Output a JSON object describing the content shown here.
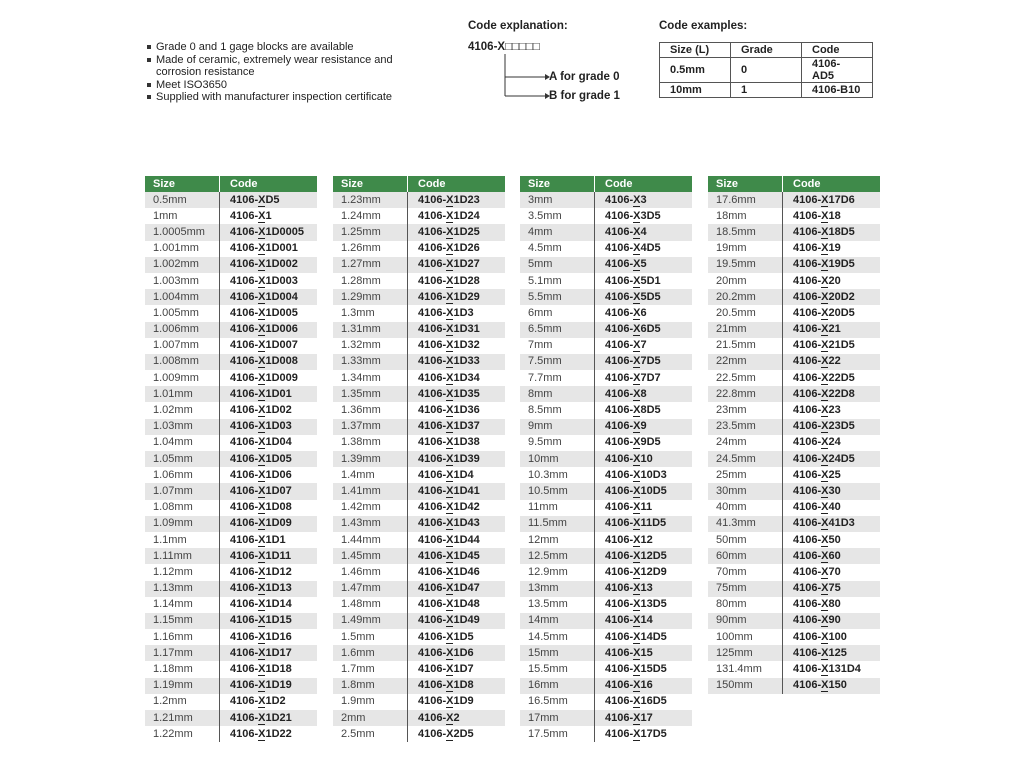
{
  "features": [
    "Grade 0 and 1 gage blocks are available",
    "Made of ceramic, extremely wear resistance and corrosion resistance",
    "Meet ISO3650",
    "Supplied with manufacturer inspection certificate"
  ],
  "explanation": {
    "title": "Code explanation:",
    "code_prefix": "4106-X",
    "code_boxes": "□□□□□",
    "grade_a": "A for grade 0",
    "grade_b": "B for grade 1"
  },
  "examples": {
    "title": "Code examples:",
    "headers": [
      "Size (L)",
      "Grade",
      "Code"
    ],
    "rows": [
      [
        "0.5mm",
        "0",
        "4106-AD5"
      ],
      [
        "10mm",
        "1",
        "4106-B10"
      ]
    ]
  },
  "table_headers": {
    "size": "Size",
    "code": "Code"
  },
  "tables": [
    [
      [
        "0.5mm",
        "4106-XD5"
      ],
      [
        "1mm",
        "4106-X1"
      ],
      [
        "1.0005mm",
        "4106-X1D0005"
      ],
      [
        "1.001mm",
        "4106-X1D001"
      ],
      [
        "1.002mm",
        "4106-X1D002"
      ],
      [
        "1.003mm",
        "4106-X1D003"
      ],
      [
        "1.004mm",
        "4106-X1D004"
      ],
      [
        "1.005mm",
        "4106-X1D005"
      ],
      [
        "1.006mm",
        "4106-X1D006"
      ],
      [
        "1.007mm",
        "4106-X1D007"
      ],
      [
        "1.008mm",
        "4106-X1D008"
      ],
      [
        "1.009mm",
        "4106-X1D009"
      ],
      [
        "1.01mm",
        "4106-X1D01"
      ],
      [
        "1.02mm",
        "4106-X1D02"
      ],
      [
        "1.03mm",
        "4106-X1D03"
      ],
      [
        "1.04mm",
        "4106-X1D04"
      ],
      [
        "1.05mm",
        "4106-X1D05"
      ],
      [
        "1.06mm",
        "4106-X1D06"
      ],
      [
        "1.07mm",
        "4106-X1D07"
      ],
      [
        "1.08mm",
        "4106-X1D08"
      ],
      [
        "1.09mm",
        "4106-X1D09"
      ],
      [
        "1.1mm",
        "4106-X1D1"
      ],
      [
        "1.11mm",
        "4106-X1D11"
      ],
      [
        "1.12mm",
        "4106-X1D12"
      ],
      [
        "1.13mm",
        "4106-X1D13"
      ],
      [
        "1.14mm",
        "4106-X1D14"
      ],
      [
        "1.15mm",
        "4106-X1D15"
      ],
      [
        "1.16mm",
        "4106-X1D16"
      ],
      [
        "1.17mm",
        "4106-X1D17"
      ],
      [
        "1.18mm",
        "4106-X1D18"
      ],
      [
        "1.19mm",
        "4106-X1D19"
      ],
      [
        "1.2mm",
        "4106-X1D2"
      ],
      [
        "1.21mm",
        "4106-X1D21"
      ],
      [
        "1.22mm",
        "4106-X1D22"
      ]
    ],
    [
      [
        "1.23mm",
        "4106-X1D23"
      ],
      [
        "1.24mm",
        "4106-X1D24"
      ],
      [
        "1.25mm",
        "4106-X1D25"
      ],
      [
        "1.26mm",
        "4106-X1D26"
      ],
      [
        "1.27mm",
        "4106-X1D27"
      ],
      [
        "1.28mm",
        "4106-X1D28"
      ],
      [
        "1.29mm",
        "4106-X1D29"
      ],
      [
        "1.3mm",
        "4106-X1D3"
      ],
      [
        "1.31mm",
        "4106-X1D31"
      ],
      [
        "1.32mm",
        "4106-X1D32"
      ],
      [
        "1.33mm",
        "4106-X1D33"
      ],
      [
        "1.34mm",
        "4106-X1D34"
      ],
      [
        "1.35mm",
        "4106-X1D35"
      ],
      [
        "1.36mm",
        "4106-X1D36"
      ],
      [
        "1.37mm",
        "4106-X1D37"
      ],
      [
        "1.38mm",
        "4106-X1D38"
      ],
      [
        "1.39mm",
        "4106-X1D39"
      ],
      [
        "1.4mm",
        "4106-X1D4"
      ],
      [
        "1.41mm",
        "4106-X1D41"
      ],
      [
        "1.42mm",
        "4106-X1D42"
      ],
      [
        "1.43mm",
        "4106-X1D43"
      ],
      [
        "1.44mm",
        "4106-X1D44"
      ],
      [
        "1.45mm",
        "4106-X1D45"
      ],
      [
        "1.46mm",
        "4106-X1D46"
      ],
      [
        "1.47mm",
        "4106-X1D47"
      ],
      [
        "1.48mm",
        "4106-X1D48"
      ],
      [
        "1.49mm",
        "4106-X1D49"
      ],
      [
        "1.5mm",
        "4106-X1D5"
      ],
      [
        "1.6mm",
        "4106-X1D6"
      ],
      [
        "1.7mm",
        "4106-X1D7"
      ],
      [
        "1.8mm",
        "4106-X1D8"
      ],
      [
        "1.9mm",
        "4106-X1D9"
      ],
      [
        "2mm",
        "4106-X2"
      ],
      [
        "2.5mm",
        "4106-X2D5"
      ]
    ],
    [
      [
        "3mm",
        "4106-X3"
      ],
      [
        "3.5mm",
        "4106-X3D5"
      ],
      [
        "4mm",
        "4106-X4"
      ],
      [
        "4.5mm",
        "4106-X4D5"
      ],
      [
        "5mm",
        "4106-X5"
      ],
      [
        "5.1mm",
        "4106-X5D1"
      ],
      [
        "5.5mm",
        "4106-X5D5"
      ],
      [
        "6mm",
        "4106-X6"
      ],
      [
        "6.5mm",
        "4106-X6D5"
      ],
      [
        "7mm",
        "4106-X7"
      ],
      [
        "7.5mm",
        "4106-X7D5"
      ],
      [
        "7.7mm",
        "4106-X7D7"
      ],
      [
        "8mm",
        "4106-X8"
      ],
      [
        "8.5mm",
        "4106-X8D5"
      ],
      [
        "9mm",
        "4106-X9"
      ],
      [
        "9.5mm",
        "4106-X9D5"
      ],
      [
        "10mm",
        "4106-X10"
      ],
      [
        "10.3mm",
        "4106-X10D3"
      ],
      [
        "10.5mm",
        "4106-X10D5"
      ],
      [
        "11mm",
        "4106-X11"
      ],
      [
        "11.5mm",
        "4106-X11D5"
      ],
      [
        "12mm",
        "4106-X12"
      ],
      [
        "12.5mm",
        "4106-X12D5"
      ],
      [
        "12.9mm",
        "4106-X12D9"
      ],
      [
        "13mm",
        "4106-X13"
      ],
      [
        "13.5mm",
        "4106-X13D5"
      ],
      [
        "14mm",
        "4106-X14"
      ],
      [
        "14.5mm",
        "4106-X14D5"
      ],
      [
        "15mm",
        "4106-X15"
      ],
      [
        "15.5mm",
        "4106-X15D5"
      ],
      [
        "16mm",
        "4106-X16"
      ],
      [
        "16.5mm",
        "4106-X16D5"
      ],
      [
        "17mm",
        "4106-X17"
      ],
      [
        "17.5mm",
        "4106-X17D5"
      ]
    ],
    [
      [
        "17.6mm",
        "4106-X17D6"
      ],
      [
        "18mm",
        "4106-X18"
      ],
      [
        "18.5mm",
        "4106-X18D5"
      ],
      [
        "19mm",
        "4106-X19"
      ],
      [
        "19.5mm",
        "4106-X19D5"
      ],
      [
        "20mm",
        "4106-X20"
      ],
      [
        "20.2mm",
        "4106-X20D2"
      ],
      [
        "20.5mm",
        "4106-X20D5"
      ],
      [
        "21mm",
        "4106-X21"
      ],
      [
        "21.5mm",
        "4106-X21D5"
      ],
      [
        "22mm",
        "4106-X22"
      ],
      [
        "22.5mm",
        "4106-X22D5"
      ],
      [
        "22.8mm",
        "4106-X22D8"
      ],
      [
        "23mm",
        "4106-X23"
      ],
      [
        "23.5mm",
        "4106-X23D5"
      ],
      [
        "24mm",
        "4106-X24"
      ],
      [
        "24.5mm",
        "4106-X24D5"
      ],
      [
        "25mm",
        "4106-X25"
      ],
      [
        "30mm",
        "4106-X30"
      ],
      [
        "40mm",
        "4106-X40"
      ],
      [
        "41.3mm",
        "4106-X41D3"
      ],
      [
        "50mm",
        "4106-X50"
      ],
      [
        "60mm",
        "4106-X60"
      ],
      [
        "70mm",
        "4106-X70"
      ],
      [
        "75mm",
        "4106-X75"
      ],
      [
        "80mm",
        "4106-X80"
      ],
      [
        "90mm",
        "4106-X90"
      ],
      [
        "100mm",
        "4106-X100"
      ],
      [
        "125mm",
        "4106-X125"
      ],
      [
        "131.4mm",
        "4106-X131D4"
      ],
      [
        "150mm",
        "4106-X150"
      ]
    ]
  ]
}
